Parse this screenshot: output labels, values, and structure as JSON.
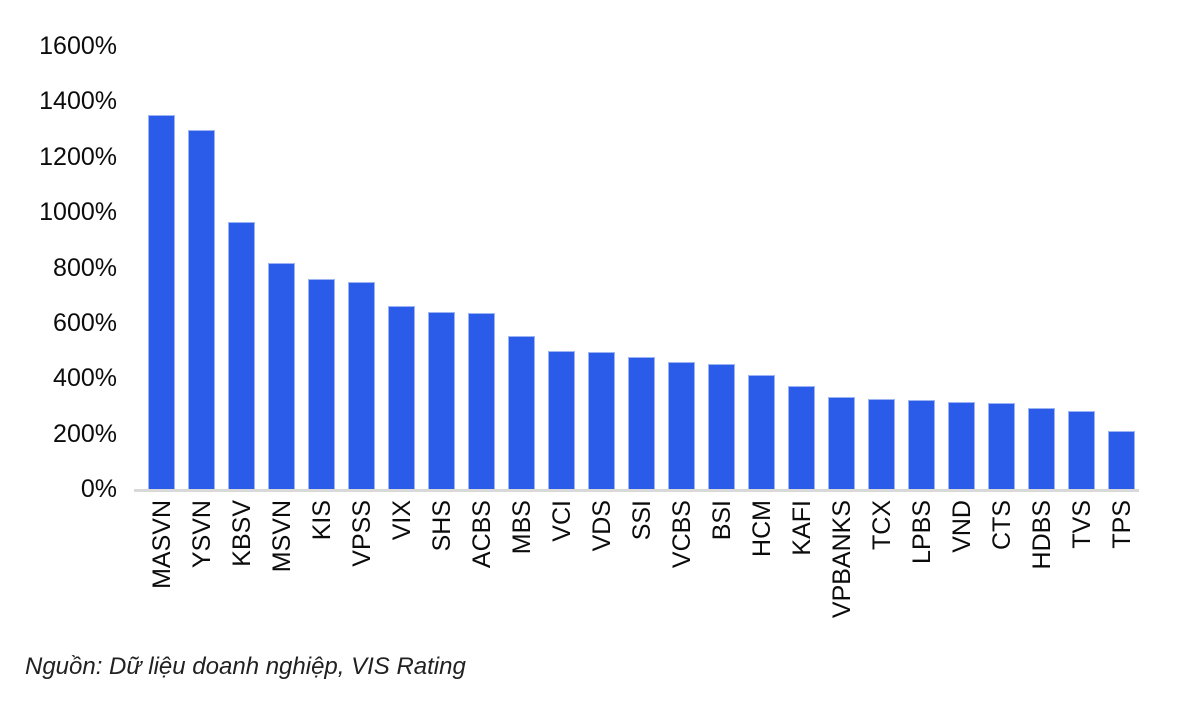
{
  "chart_data": {
    "type": "bar",
    "title": "",
    "xlabel": "",
    "ylabel": "",
    "unit": "%",
    "categories": [
      "MASVN",
      "YSVN",
      "KBSV",
      "MSVN",
      "KIS",
      "VPSS",
      "VIX",
      "SHS",
      "ACBS",
      "MBS",
      "VCI",
      "VDS",
      "SSI",
      "VCBS",
      "BSI",
      "HCM",
      "KAFI",
      "VPBANKS",
      "TCX",
      "LPBS",
      "VND",
      "CTS",
      "HDBS",
      "TVS",
      "TPS"
    ],
    "values": [
      1350,
      1295,
      965,
      816,
      758,
      747,
      660,
      639,
      635,
      553,
      498,
      494,
      477,
      458,
      452,
      412,
      372,
      334,
      326,
      320,
      314,
      310,
      292,
      281,
      209
    ],
    "ylim": [
      0,
      1600
    ],
    "ytick_step": 200,
    "ytick_labels": [
      "0%",
      "200%",
      "400%",
      "600%",
      "800%",
      "1000%",
      "1200%",
      "1400%",
      "1600%"
    ],
    "grid": false,
    "legend": "none",
    "bar_color": "#2b5ce9",
    "bar_edge_color": "#9db4f2",
    "axis_line_color": "#d9d9d9"
  },
  "source": {
    "text": "Nguồn: Dữ liệu doanh nghiệp, VIS Rating"
  }
}
